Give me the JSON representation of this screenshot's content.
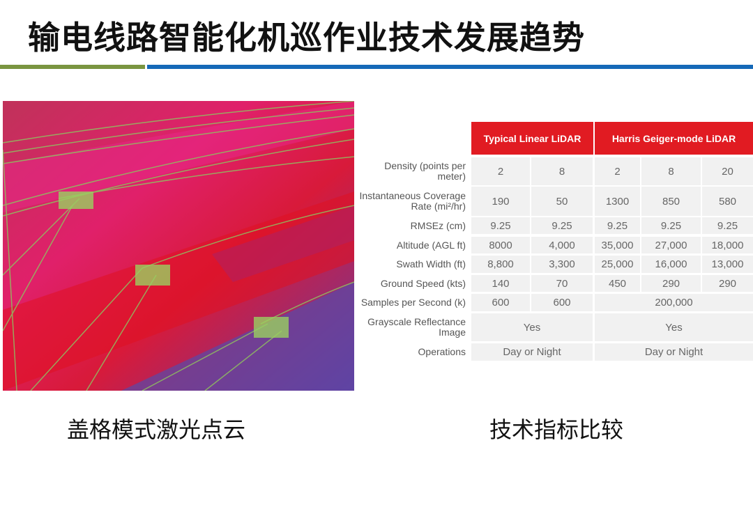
{
  "title": "输电线路智能化机巡作业技术发展趋势",
  "captions": {
    "left": "盖格模式激光点云",
    "right": "技术指标比较"
  },
  "colors": {
    "header_red": "#e11b22",
    "accent_green": "#7a9540",
    "accent_blue": "#1569b8"
  },
  "table": {
    "headers": [
      "Typical Linear LiDAR",
      "Harris Geiger-mode LiDAR"
    ],
    "rows": [
      {
        "label": "Density (points per meter)",
        "values": [
          "2",
          "8",
          "2",
          "8",
          "20"
        ]
      },
      {
        "label": "Instantaneous Coverage Rate (mi²/hr)",
        "values": [
          "190",
          "50",
          "1300",
          "850",
          "580"
        ]
      },
      {
        "label": "RMSEz (cm)",
        "values": [
          "9.25",
          "9.25",
          "9.25",
          "9.25",
          "9.25"
        ]
      },
      {
        "label": "Altitude (AGL ft)",
        "values": [
          "8000",
          "4,000",
          "35,000",
          "27,000",
          "18,000"
        ]
      },
      {
        "label": "Swath Width (ft)",
        "values": [
          "8,800",
          "3,300",
          "25,000",
          "16,000",
          "13,000"
        ]
      },
      {
        "label": "Ground Speed (kts)",
        "values": [
          "140",
          "70",
          "450",
          "290",
          "290"
        ]
      },
      {
        "label": "Samples per Second (k)",
        "values": [
          "600",
          "600",
          "200,000"
        ]
      },
      {
        "label": "Grayscale Reflectance Image",
        "values": [
          "Yes",
          "Yes"
        ]
      },
      {
        "label": "Operations",
        "values": [
          "Day or Night",
          "Day or Night"
        ]
      }
    ]
  }
}
